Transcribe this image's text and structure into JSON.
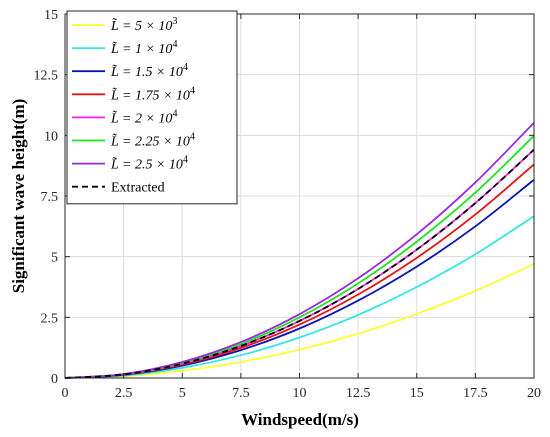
{
  "chart_data": {
    "type": "line",
    "xlabel": "Windspeed(m/s)",
    "ylabel": "Significant wave height(m)",
    "xlim": [
      0,
      20
    ],
    "ylim": [
      0,
      15
    ],
    "xticks": [
      "0",
      "2.5",
      "5",
      "7.5",
      "10",
      "12.5",
      "15",
      "17.5",
      "20"
    ],
    "yticks": [
      "0",
      "2.5",
      "5",
      "7.5",
      "10",
      "12.5",
      "15"
    ],
    "grid": true,
    "legend_position": "top-left",
    "x": [
      0,
      2.5,
      5,
      7.5,
      10,
      12.5,
      15,
      17.5,
      20
    ],
    "series": [
      {
        "name": "L̃ = 5 × 10³",
        "base": "L̃ = 5 × 10",
        "sup": "3",
        "color": "#ffff33",
        "dash": false,
        "values": [
          0,
          0.07,
          0.3,
          0.66,
          1.17,
          1.83,
          2.64,
          3.59,
          4.7
        ]
      },
      {
        "name": "L̃ = 1 × 10⁴",
        "base": "L̃ = 1 × 10",
        "sup": "4",
        "color": "#33e6e6",
        "dash": false,
        "values": [
          0,
          0.1,
          0.42,
          0.94,
          1.67,
          2.6,
          3.75,
          5.1,
          6.67
        ]
      },
      {
        "name": "L̃ = 1.5 × 10⁴",
        "base": "L̃ = 1.5 × 10",
        "sup": "4",
        "color": "#0a14b4",
        "dash": false,
        "values": [
          0,
          0.13,
          0.51,
          1.15,
          2.04,
          3.19,
          4.59,
          6.25,
          8.17
        ]
      },
      {
        "name": "L̃ = 1.75 × 10⁴",
        "base": "L̃ = 1.75 × 10",
        "sup": "4",
        "color": "#e61414",
        "dash": false,
        "values": [
          0,
          0.14,
          0.55,
          1.24,
          2.2,
          3.44,
          4.95,
          6.74,
          8.8
        ]
      },
      {
        "name": "L̃ = 2 × 10⁴",
        "base": "L̃ = 2 × 10",
        "sup": "4",
        "color": "#ff1ee6",
        "dash": false,
        "values": [
          0,
          0.15,
          0.59,
          1.32,
          2.35,
          3.67,
          5.29,
          7.21,
          9.41
        ]
      },
      {
        "name": "L̃ = 2.25 × 10⁴",
        "base": "L̃ = 2.25 × 10",
        "sup": "4",
        "color": "#1ee61e",
        "dash": false,
        "values": [
          0,
          0.16,
          0.62,
          1.4,
          2.5,
          3.9,
          5.62,
          7.64,
          9.98
        ]
      },
      {
        "name": "L̃ = 2.5 × 10⁴",
        "base": "L̃ = 2.5 × 10",
        "sup": "4",
        "color": "#9b28e6",
        "dash": false,
        "values": [
          0,
          0.16,
          0.66,
          1.48,
          2.63,
          4.11,
          5.92,
          8.06,
          10.52
        ]
      },
      {
        "name": "Extracted",
        "base": "Extracted",
        "sup": "",
        "color": "#000000",
        "dash": true,
        "values": [
          0,
          0.15,
          0.59,
          1.32,
          2.35,
          3.67,
          5.29,
          7.21,
          9.41
        ]
      }
    ]
  }
}
